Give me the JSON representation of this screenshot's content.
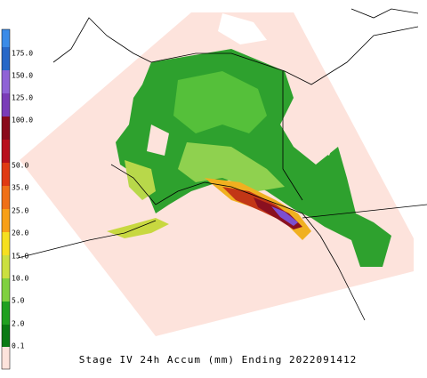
{
  "legend": {
    "labels": [
      "175.0",
      "150.0",
      "125.0",
      "100.0",
      "50.0",
      "35.0",
      "25.0",
      "20.0",
      "15.0",
      "10.0",
      "5.0",
      "2.0",
      "0.1"
    ]
  },
  "caption": "Stage IV 24h Accum (mm) Ending 2022091412"
}
